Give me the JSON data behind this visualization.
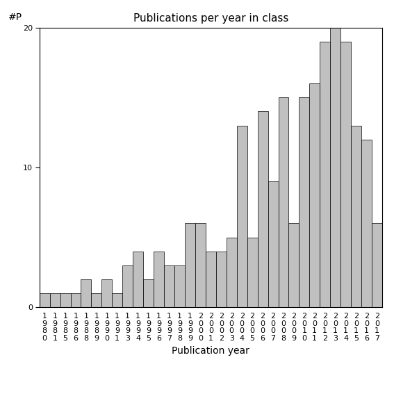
{
  "years": [
    1980,
    1981,
    1985,
    1986,
    1988,
    1989,
    1990,
    1991,
    1993,
    1994,
    1995,
    1996,
    1997,
    1998,
    1999,
    2000,
    2001,
    2002,
    2003,
    2004,
    2005,
    2006,
    2007,
    2008,
    2009,
    2010,
    2011,
    2012,
    2013,
    2014,
    2015,
    2016,
    2017
  ],
  "values": [
    1,
    1,
    1,
    1,
    2,
    1,
    2,
    1,
    3,
    4,
    2,
    4,
    3,
    3,
    6,
    6,
    4,
    4,
    5,
    13,
    5,
    14,
    9,
    15,
    6,
    15,
    16,
    19,
    20,
    19,
    13,
    12,
    6
  ],
  "bar_color": "#c0c0c0",
  "bar_edge_color": "#000000",
  "title": "Publications per year in class",
  "xlabel": "Publication year",
  "ylabel": "#P",
  "ylim": [
    0,
    20
  ],
  "yticks": [
    0,
    10,
    20
  ],
  "background_color": "#ffffff",
  "title_fontsize": 11,
  "label_fontsize": 10,
  "tick_fontsize": 8
}
